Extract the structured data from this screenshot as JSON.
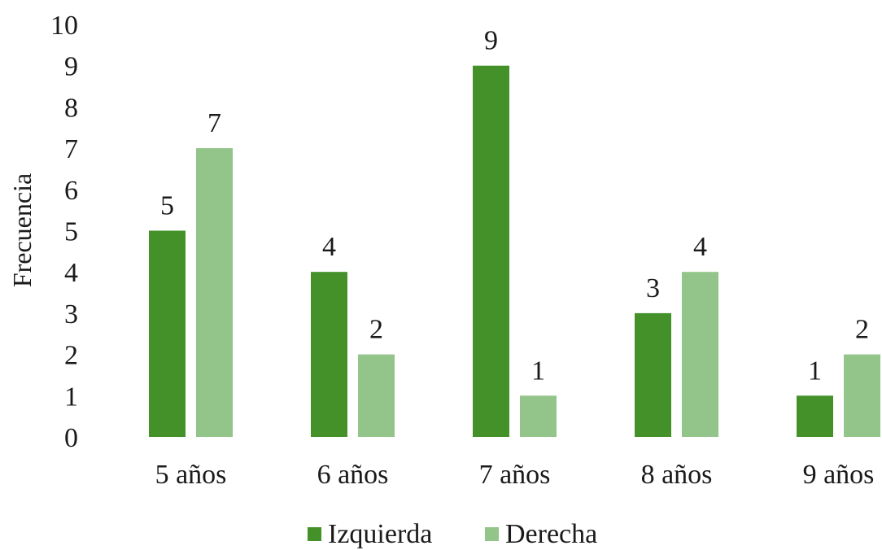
{
  "chart_data": {
    "type": "bar",
    "title": "",
    "xlabel": "",
    "ylabel": "Frecuencia",
    "ylim": [
      0,
      10
    ],
    "yticks": [
      0,
      1,
      2,
      3,
      4,
      5,
      6,
      7,
      8,
      9,
      10
    ],
    "grid": false,
    "legend": "bottom",
    "data_labels": true,
    "categories": [
      "5 años",
      "6 años",
      "7 años",
      "8 años",
      "9 años"
    ],
    "series": [
      {
        "name": "Izquierda",
        "color": "#44912a",
        "values": [
          5,
          4,
          9,
          3,
          1
        ]
      },
      {
        "name": "Derecha",
        "color": "#93c48a",
        "values": [
          7,
          2,
          1,
          4,
          2
        ]
      }
    ]
  }
}
